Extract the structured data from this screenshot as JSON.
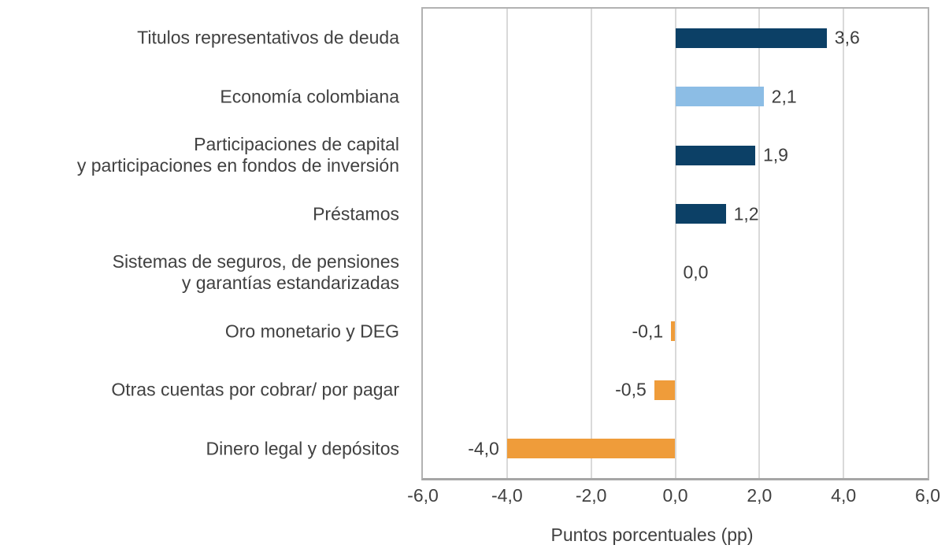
{
  "chart_data": {
    "type": "bar",
    "orientation": "horizontal",
    "title": "",
    "xlabel": "Puntos porcentuales (pp)",
    "ylabel": "",
    "xlim": [
      -6.0,
      6.0
    ],
    "xticks": [
      -6,
      -4,
      -2,
      0,
      2,
      4,
      6
    ],
    "xtick_labels": [
      "-6,0",
      "-4,0",
      "-2,0",
      "0,0",
      "2,0",
      "4,0",
      "6,0"
    ],
    "grid": "vertical-only",
    "legend_position": "none",
    "decimal_separator": ",",
    "categories": [
      "Titulos representativos de deuda",
      "Economía colombiana",
      "Participaciones de capital\ny participaciones en fondos de inversión",
      "Préstamos",
      "Sistemas de seguros, de pensiones\ny garantías estandarizadas",
      "Oro monetario y DEG",
      "Otras cuentas por cobrar/ por pagar",
      "Dinero legal y depósitos"
    ],
    "values": [
      3.6,
      2.1,
      1.9,
      1.2,
      0.0,
      -0.1,
      -0.5,
      -4.0
    ],
    "value_labels": [
      "3,6",
      "2,1",
      "1,9",
      "1,2",
      "0,0",
      "-0,1",
      "-0,5",
      "-4,0"
    ],
    "bar_colors": [
      "#0c4066",
      "#8cbde5",
      "#0c4066",
      "#0c4066",
      null,
      "#ef9c3a",
      "#ef9c3a",
      "#ef9c3a"
    ],
    "colors": {
      "dark_blue": "#0c4066",
      "light_blue": "#8cbde5",
      "orange": "#ef9c3a",
      "gridline": "#d9d9d9",
      "plot_border": "#b2b2b2",
      "axis_line": "#a6a6a6",
      "text": "#414141"
    }
  }
}
